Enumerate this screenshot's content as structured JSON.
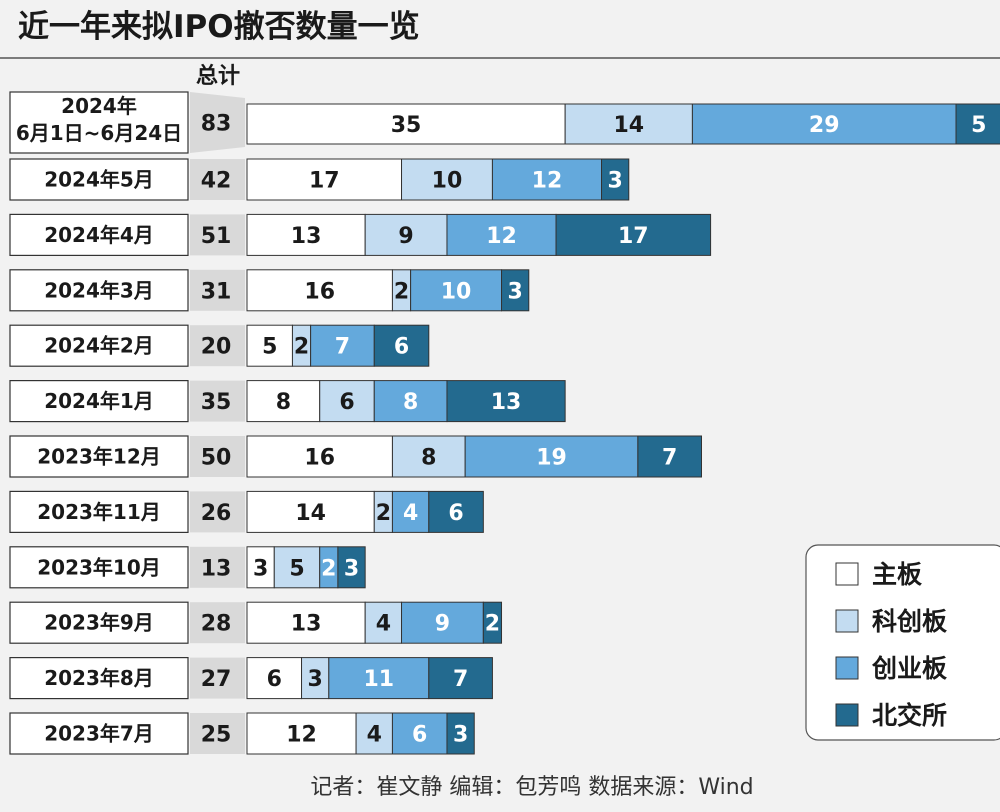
{
  "chart_data": {
    "type": "bar",
    "orientation": "horizontal",
    "stacked": true,
    "title": "近一年来拟IPO撤否数量一览",
    "total_header": "总计",
    "categories": [
      "2024年\n6月1日~6月24日",
      "2024年5月",
      "2024年4月",
      "2024年3月",
      "2024年2月",
      "2024年1月",
      "2023年12月",
      "2023年11月",
      "2023年10月",
      "2023年9月",
      "2023年8月",
      "2023年7月"
    ],
    "totals": [
      83,
      42,
      51,
      31,
      20,
      35,
      50,
      26,
      13,
      28,
      27,
      25
    ],
    "series": [
      {
        "name": "主板",
        "color": "#ffffff",
        "label_color": "#1a1a1a",
        "values": [
          35,
          17,
          13,
          16,
          5,
          8,
          16,
          14,
          3,
          13,
          6,
          12
        ]
      },
      {
        "name": "科创板",
        "color": "#c3dcf1",
        "label_color": "#1a1a1a",
        "values": [
          14,
          10,
          9,
          2,
          2,
          6,
          8,
          2,
          5,
          4,
          3,
          4
        ]
      },
      {
        "name": "创业板",
        "color": "#64a9dc",
        "label_color": "#ffffff",
        "values": [
          29,
          12,
          12,
          10,
          7,
          8,
          19,
          4,
          2,
          9,
          11,
          6
        ]
      },
      {
        "name": "北交所",
        "color": "#236a8f",
        "label_color": "#ffffff",
        "values": [
          5,
          3,
          17,
          3,
          6,
          13,
          7,
          6,
          3,
          2,
          7,
          3
        ]
      }
    ],
    "legend_position": "bottom-right",
    "grid": false,
    "footer": "记者：崔文静   编辑：包芳鸣   数据来源：Wind"
  }
}
